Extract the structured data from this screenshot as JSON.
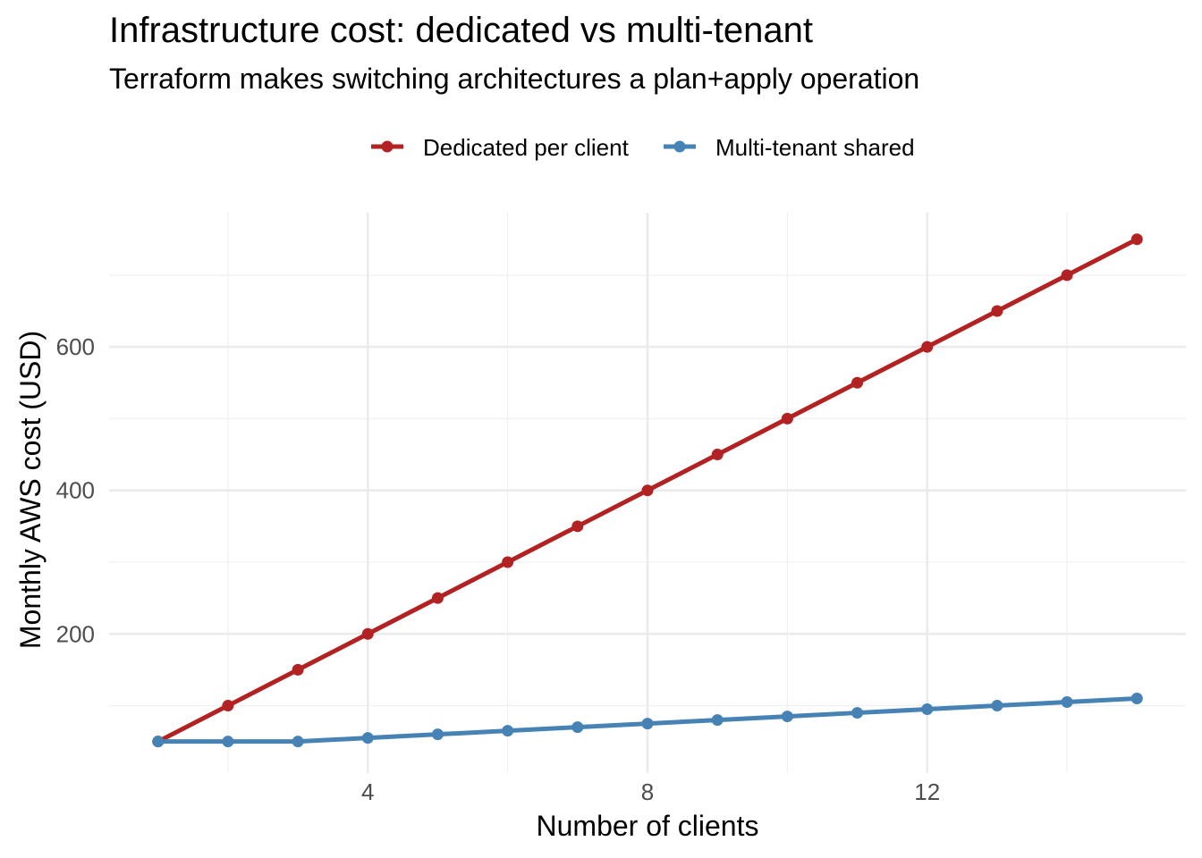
{
  "chart_data": {
    "type": "line",
    "title": "Infrastructure cost: dedicated vs multi-tenant",
    "subtitle": "Terraform makes switching architectures a plan+apply operation",
    "xlabel": "Number of clients",
    "ylabel": "Monthly AWS cost (USD)",
    "x": [
      1,
      2,
      3,
      4,
      5,
      6,
      7,
      8,
      9,
      10,
      11,
      12,
      13,
      14,
      15
    ],
    "xlim": [
      0.3,
      15.7
    ],
    "ylim": [
      6,
      787
    ],
    "xticks": [
      4,
      8,
      12
    ],
    "yticks": [
      200,
      400,
      600
    ],
    "xminor": [
      2,
      6,
      10,
      14
    ],
    "yminor": [
      100,
      300,
      500,
      700
    ],
    "grid": true,
    "legend_position": "top",
    "series": [
      {
        "name": "Dedicated per client",
        "color": "#B22222",
        "values": [
          50,
          100,
          150,
          200,
          250,
          300,
          350,
          400,
          450,
          500,
          550,
          600,
          650,
          700,
          750
        ]
      },
      {
        "name": "Multi-tenant shared",
        "color": "#4682B4",
        "values": [
          50,
          50,
          50,
          55,
          60,
          65,
          70,
          75,
          80,
          85,
          90,
          95,
          100,
          105,
          110
        ]
      }
    ]
  }
}
